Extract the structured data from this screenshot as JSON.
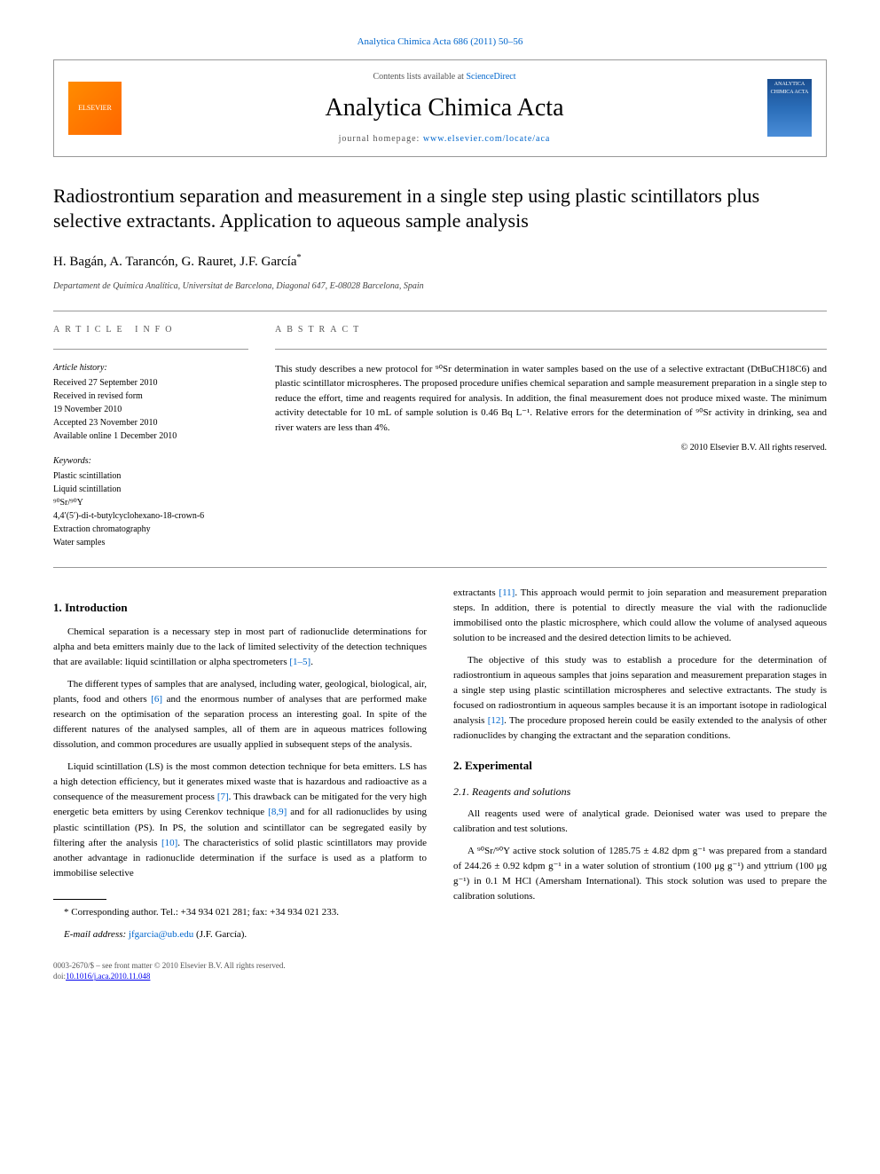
{
  "journal_ref": {
    "prefix": "Analytica Chimica Acta 686 (2011) 50–56",
    "link_text": "Analytica Chimica Acta"
  },
  "header": {
    "contents_prefix": "Contents lists available at ",
    "contents_link": "ScienceDirect",
    "journal_name": "Analytica Chimica Acta",
    "homepage_prefix": "journal homepage: ",
    "homepage_url": "www.elsevier.com/locate/aca",
    "publisher_text": "ELSEVIER",
    "cover_text": "ANALYTICA CHIMICA ACTA"
  },
  "title": "Radiostrontium separation and measurement in a single step using plastic scintillators plus selective extractants. Application to aqueous sample analysis",
  "authors_line": "H. Bagán, A. Tarancón, G. Rauret, J.F. García",
  "corr_marker": "*",
  "affiliation": "Departament de Química Analítica, Universitat de Barcelona, Diagonal 647, E-08028 Barcelona, Spain",
  "article_info": {
    "label": "ARTICLE INFO",
    "history_label": "Article history:",
    "history": [
      "Received 27 September 2010",
      "Received in revised form",
      "19 November 2010",
      "Accepted 23 November 2010",
      "Available online 1 December 2010"
    ],
    "keywords_label": "Keywords:",
    "keywords": [
      "Plastic scintillation",
      "Liquid scintillation",
      "⁹⁰Sr/⁹⁰Y",
      "4,4′(5′)-di-t-butylcyclohexano-18-crown-6",
      "Extraction chromatography",
      "Water samples"
    ]
  },
  "abstract": {
    "label": "ABSTRACT",
    "text": "This study describes a new protocol for ⁹⁰Sr determination in water samples based on the use of a selective extractant (DtBuCH18C6) and plastic scintillator microspheres. The proposed procedure unifies chemical separation and sample measurement preparation in a single step to reduce the effort, time and reagents required for analysis. In addition, the final measurement does not produce mixed waste. The minimum activity detectable for 10 mL of sample solution is 0.46 Bq L⁻¹. Relative errors for the determination of ⁹⁰Sr activity in drinking, sea and river waters are less than 4%.",
    "copyright": "© 2010 Elsevier B.V. All rights reserved."
  },
  "sections": {
    "intro_heading": "1. Introduction",
    "intro_paragraphs": [
      {
        "text": "Chemical separation is a necessary step in most part of radionuclide determinations for alpha and beta emitters mainly due to the lack of limited selectivity of the detection techniques that are available: liquid scintillation or alpha spectrometers ",
        "ref": "[1–5]",
        "tail": "."
      },
      {
        "text": "The different types of samples that are analysed, including water, geological, biological, air, plants, food and others ",
        "ref": "[6]",
        "tail": " and the enormous number of analyses that are performed make research on the optimisation of the separation process an interesting goal. In spite of the different natures of the analysed samples, all of them are in aqueous matrices following dissolution, and common procedures are usually applied in subsequent steps of the analysis."
      },
      {
        "text": "Liquid scintillation (LS) is the most common detection technique for beta emitters. LS has a high detection efficiency, but it generates mixed waste that is hazardous and radioactive as a consequence of the measurement process ",
        "ref": "[7]",
        "tail": ". This drawback can be mitigated for the very high energetic beta emitters by using Cerenkov technique ",
        "ref2": "[8,9]",
        "tail2": " and for all radionuclides by using plastic scintillation (PS). In PS, the solution and scintillator can be segregated easily by filtering after the analysis ",
        "ref3": "[10]",
        "tail3": ". The characteristics of solid plastic scintillators may provide another advantage in radionuclide determination if the surface is used as a platform to immobilise selective"
      }
    ],
    "intro_col2": [
      {
        "pre": "extractants ",
        "ref": "[11]",
        "text": ". This approach would permit to join separation and measurement preparation steps. In addition, there is potential to directly measure the vial with the radionuclide immobilised onto the plastic microsphere, which could allow the volume of analysed aqueous solution to be increased and the desired detection limits to be achieved."
      },
      {
        "text": "The objective of this study was to establish a procedure for the determination of radiostrontium in aqueous samples that joins separation and measurement preparation stages in a single step using plastic scintillation microspheres and selective extractants. The study is focused on radiostrontium in aqueous samples because it is an important isotope in radiological analysis ",
        "ref": "[12]",
        "tail": ". The procedure proposed herein could be easily extended to the analysis of other radionuclides by changing the extractant and the separation conditions."
      }
    ],
    "experimental_heading": "2. Experimental",
    "reagents_heading": "2.1. Reagents and solutions",
    "reagents_paragraphs": [
      "All reagents used were of analytical grade. Deionised water was used to prepare the calibration and test solutions.",
      "A ⁹⁰Sr/⁹⁰Y active stock solution of 1285.75 ± 4.82 dpm g⁻¹ was prepared from a standard of 244.26 ± 0.92 kdpm g⁻¹ in a water solution of strontium (100 μg g⁻¹) and yttrium (100 μg g⁻¹) in 0.1 M HCl (Amersham International). This stock solution was used to prepare the calibration solutions."
    ]
  },
  "footnote": {
    "marker": "*",
    "text": " Corresponding author. Tel.: +34 934 021 281; fax: +34 934 021 233.",
    "email_label": "E-mail address: ",
    "email": "jfgarcia@ub.edu",
    "email_name": " (J.F. García)."
  },
  "footer": {
    "line1": "0003-2670/$ – see front matter © 2010 Elsevier B.V. All rights reserved.",
    "doi_prefix": "doi:",
    "doi": "10.1016/j.aca.2010.11.048"
  },
  "colors": {
    "link": "#0066cc",
    "border": "#999999",
    "text": "#000000",
    "muted": "#555555"
  }
}
